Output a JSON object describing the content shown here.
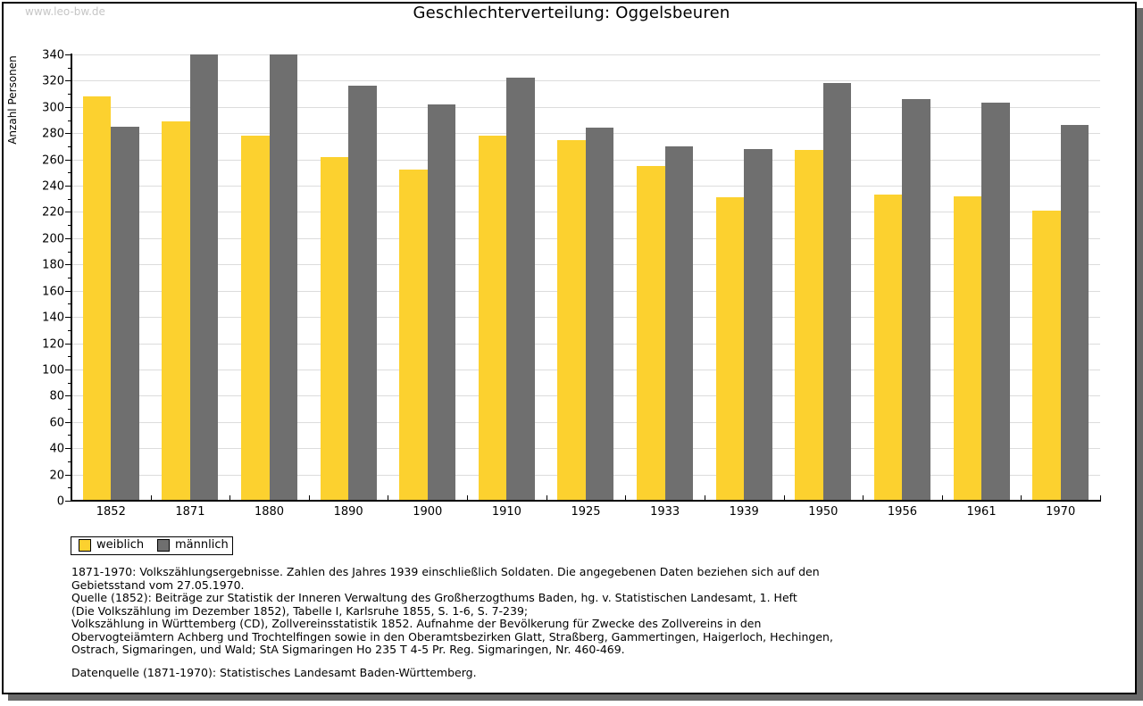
{
  "watermark": "www.leo-bw.de",
  "title": "Geschlechterverteilung: Oggelsbeuren",
  "chart_data": {
    "type": "bar",
    "title": "Geschlechterverteilung: Oggelsbeuren",
    "categories": [
      "1852",
      "1871",
      "1880",
      "1890",
      "1900",
      "1910",
      "1925",
      "1933",
      "1939",
      "1950",
      "1956",
      "1961",
      "1970"
    ],
    "series": [
      {
        "name": "weiblich",
        "color": "#fcd12f",
        "values": [
          308,
          289,
          278,
          262,
          252,
          278,
          275,
          255,
          231,
          267,
          233,
          232,
          221
        ]
      },
      {
        "name": "männlich",
        "color": "#6f6f6f",
        "values": [
          285,
          340,
          340,
          316,
          302,
          322,
          284,
          270,
          268,
          318,
          306,
          303,
          286
        ]
      }
    ],
    "xlabel": "",
    "ylabel": "Anzahl Personen",
    "ylim": [
      0,
      340
    ],
    "ytick_step": 20,
    "ytick_minor_step": 10,
    "grid": true,
    "gridline_color": "#dcdcdc",
    "axis_color": "#000000",
    "legend_position": "below-left"
  },
  "footer": {
    "lines": [
      "1871-1970: Volkszählungsergebnisse. Zahlen des Jahres 1939 einschließlich Soldaten. Die angegebenen Daten beziehen sich auf den",
      "Gebietsstand vom 27.05.1970.",
      "Quelle (1852): Beiträge zur Statistik der Inneren Verwaltung des Großherzogthums Baden, hg. v. Statistischen Landesamt, 1. Heft",
      "(Die Volkszählung im Dezember 1852), Tabelle I, Karlsruhe 1855, S. 1-6, S. 7-239;",
      "Volkszählung in Württemberg (CD), Zollvereinsstatistik 1852. Aufnahme der Bevölkerung für Zwecke des Zollvereins in den",
      "Obervogteiämtern Achberg und Trochtelfingen sowie in den Oberamtsbezirken Glatt, Straßberg, Gammertingen, Haigerloch, Hechingen,",
      "Ostrach, Sigmaringen, und Wald; StA Sigmaringen Ho 235 T 4-5 Pr. Reg. Sigmaringen, Nr. 460-469."
    ],
    "datasource": "Datenquelle (1871-1970): Statistisches Landesamt Baden-Württemberg."
  }
}
